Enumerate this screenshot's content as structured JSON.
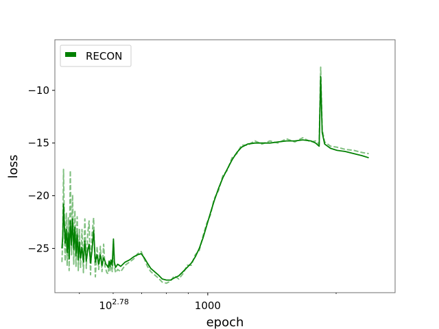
{
  "chart_data": {
    "type": "line",
    "title": "",
    "xlabel": "epoch",
    "ylabel": "loss",
    "x_scale": "log",
    "xlim": [
      438,
      2750
    ],
    "ylim": [
      -29.2,
      -5.2
    ],
    "grid": false,
    "legend_placement": "top-left",
    "x_tick_labels": [
      {
        "x": 602.56,
        "base": "10",
        "exp": "2.78"
      },
      {
        "x": 1000,
        "label": "1000"
      }
    ],
    "y_ticks": [
      -25,
      -20,
      -15,
      -10
    ],
    "y_tick_labels": [
      "−25",
      "−20",
      "−15",
      "−10"
    ],
    "colors": {
      "solid": "#008000",
      "dashed": "#7fbf7f"
    },
    "series": [
      {
        "name": "RECON",
        "style": "solid",
        "points": [
          [
            455,
            -25.0
          ],
          [
            457,
            -23.8
          ],
          [
            459,
            -20.8
          ],
          [
            461,
            -22.7
          ],
          [
            463,
            -24.5
          ],
          [
            466,
            -23.2
          ],
          [
            468,
            -25.4
          ],
          [
            471,
            -23.5
          ],
          [
            473,
            -26.0
          ],
          [
            476,
            -22.4
          ],
          [
            479,
            -24.7
          ],
          [
            482,
            -22.2
          ],
          [
            485,
            -25.1
          ],
          [
            488,
            -23.0
          ],
          [
            491,
            -25.7
          ],
          [
            494,
            -23.6
          ],
          [
            497,
            -26.1
          ],
          [
            500,
            -24.4
          ],
          [
            503,
            -25.9
          ],
          [
            507,
            -24.9
          ],
          [
            511,
            -26.3
          ],
          [
            515,
            -24.3
          ],
          [
            519,
            -26.2
          ],
          [
            523,
            -25.2
          ],
          [
            527,
            -24.6
          ],
          [
            531,
            -26.4
          ],
          [
            535,
            -25.3
          ],
          [
            540,
            -23.3
          ],
          [
            545,
            -26.3
          ],
          [
            550,
            -25.6
          ],
          [
            555,
            -26.5
          ],
          [
            560,
            -25.6
          ],
          [
            565,
            -26.6
          ],
          [
            570,
            -25.9
          ],
          [
            574,
            -26.2
          ],
          [
            577,
            -26.5
          ],
          [
            580,
            -26.6
          ],
          [
            584,
            -26.8
          ],
          [
            587,
            -26.2
          ],
          [
            590,
            -26.7
          ],
          [
            593,
            -26.1
          ],
          [
            597,
            -26.6
          ],
          [
            601,
            -24.1
          ],
          [
            604,
            -26.3
          ],
          [
            608,
            -26.8
          ],
          [
            615,
            -26.5
          ],
          [
            625,
            -26.7
          ],
          [
            640,
            -26.3
          ],
          [
            655,
            -26.1
          ],
          [
            670,
            -25.8
          ],
          [
            685,
            -25.6
          ],
          [
            698,
            -25.5
          ],
          [
            710,
            -25.9
          ],
          [
            722,
            -26.4
          ],
          [
            735,
            -26.9
          ],
          [
            750,
            -27.2
          ],
          [
            765,
            -27.5
          ],
          [
            782,
            -27.9
          ],
          [
            800,
            -28.0
          ],
          [
            818,
            -28.0
          ],
          [
            835,
            -27.8
          ],
          [
            855,
            -27.6
          ],
          [
            875,
            -27.2
          ],
          [
            895,
            -26.8
          ],
          [
            915,
            -26.4
          ],
          [
            935,
            -25.8
          ],
          [
            955,
            -25.0
          ],
          [
            975,
            -24.0
          ],
          [
            995,
            -22.8
          ],
          [
            1015,
            -21.6
          ],
          [
            1035,
            -20.5
          ],
          [
            1060,
            -19.3
          ],
          [
            1085,
            -18.3
          ],
          [
            1110,
            -17.5
          ],
          [
            1140,
            -16.6
          ],
          [
            1170,
            -15.9
          ],
          [
            1200,
            -15.4
          ],
          [
            1240,
            -15.1
          ],
          [
            1290,
            -15.0
          ],
          [
            1340,
            -15.0
          ],
          [
            1400,
            -15.0
          ],
          [
            1460,
            -14.9
          ],
          [
            1530,
            -14.8
          ],
          [
            1600,
            -14.8
          ],
          [
            1670,
            -14.7
          ],
          [
            1745,
            -14.8
          ],
          [
            1790,
            -15.0
          ],
          [
            1825,
            -15.3
          ],
          [
            1840,
            -8.7
          ],
          [
            1855,
            -14.0
          ],
          [
            1880,
            -15.1
          ],
          [
            1940,
            -15.5
          ],
          [
            2010,
            -15.7
          ],
          [
            2100,
            -15.8
          ],
          [
            2200,
            -16.0
          ],
          [
            2300,
            -16.2
          ],
          [
            2385,
            -16.4
          ]
        ]
      },
      {
        "style": "dashed",
        "points": [
          [
            455,
            -26.3
          ],
          [
            457,
            -24.1
          ],
          [
            459,
            -17.5
          ],
          [
            461,
            -22.5
          ],
          [
            463,
            -26.2
          ],
          [
            466,
            -21.6
          ],
          [
            468,
            -26.6
          ],
          [
            471,
            -22.1
          ],
          [
            473,
            -27.1
          ],
          [
            476,
            -17.6
          ],
          [
            479,
            -25.6
          ],
          [
            482,
            -19.9
          ],
          [
            485,
            -26.5
          ],
          [
            488,
            -21.4
          ],
          [
            491,
            -26.7
          ],
          [
            494,
            -22.0
          ],
          [
            497,
            -27.1
          ],
          [
            500,
            -23.2
          ],
          [
            503,
            -26.8
          ],
          [
            507,
            -23.2
          ],
          [
            511,
            -27.3
          ],
          [
            515,
            -22.2
          ],
          [
            519,
            -26.9
          ],
          [
            523,
            -23.6
          ],
          [
            527,
            -22.4
          ],
          [
            531,
            -27.5
          ],
          [
            535,
            -23.8
          ],
          [
            540,
            -22.1
          ],
          [
            545,
            -27.7
          ],
          [
            550,
            -24.8
          ],
          [
            555,
            -27.0
          ],
          [
            560,
            -24.8
          ],
          [
            565,
            -27.2
          ],
          [
            570,
            -24.6
          ],
          [
            574,
            -26.7
          ],
          [
            577,
            -27.0
          ],
          [
            580,
            -27.3
          ],
          [
            584,
            -27.4
          ],
          [
            587,
            -26.5
          ],
          [
            590,
            -27.1
          ],
          [
            593,
            -26.3
          ],
          [
            597,
            -27.2
          ],
          [
            601,
            -24.3
          ],
          [
            604,
            -26.7
          ],
          [
            608,
            -27.3
          ],
          [
            615,
            -27.0
          ],
          [
            625,
            -27.2
          ],
          [
            640,
            -26.6
          ],
          [
            655,
            -26.3
          ],
          [
            670,
            -26.0
          ],
          [
            685,
            -25.5
          ],
          [
            698,
            -25.3
          ],
          [
            710,
            -26.0
          ],
          [
            722,
            -26.7
          ],
          [
            735,
            -27.2
          ],
          [
            750,
            -27.5
          ],
          [
            765,
            -27.8
          ],
          [
            782,
            -28.2
          ],
          [
            800,
            -28.3
          ],
          [
            818,
            -28.1
          ],
          [
            835,
            -27.6
          ],
          [
            855,
            -27.9
          ],
          [
            875,
            -27.4
          ],
          [
            895,
            -26.6
          ],
          [
            915,
            -26.6
          ],
          [
            935,
            -25.6
          ],
          [
            955,
            -25.2
          ],
          [
            975,
            -23.8
          ],
          [
            995,
            -22.6
          ],
          [
            1015,
            -21.8
          ],
          [
            1035,
            -20.3
          ],
          [
            1060,
            -19.5
          ],
          [
            1085,
            -18.1
          ],
          [
            1110,
            -17.6
          ],
          [
            1140,
            -16.4
          ],
          [
            1170,
            -16.0
          ],
          [
            1200,
            -15.2
          ],
          [
            1240,
            -15.2
          ],
          [
            1290,
            -14.8
          ],
          [
            1340,
            -15.1
          ],
          [
            1400,
            -14.8
          ],
          [
            1460,
            -15.0
          ],
          [
            1530,
            -14.6
          ],
          [
            1600,
            -14.9
          ],
          [
            1670,
            -14.5
          ],
          [
            1745,
            -14.9
          ],
          [
            1790,
            -14.8
          ],
          [
            1825,
            -15.1
          ],
          [
            1840,
            -7.8
          ],
          [
            1855,
            -13.7
          ],
          [
            1880,
            -14.9
          ],
          [
            1940,
            -15.3
          ],
          [
            2010,
            -15.4
          ],
          [
            2100,
            -15.6
          ],
          [
            2200,
            -15.7
          ],
          [
            2300,
            -15.9
          ],
          [
            2385,
            -16.0
          ]
        ]
      }
    ]
  }
}
